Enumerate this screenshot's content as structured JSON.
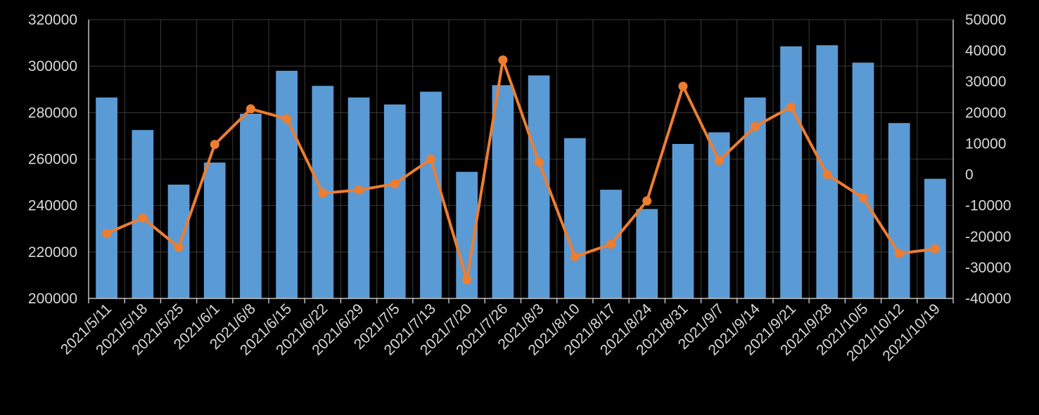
{
  "chart_data": {
    "type": "bar+line",
    "title": "",
    "categories": [
      "2021/5/11",
      "2021/5/18",
      "2021/5/25",
      "2021/6/1",
      "2021/6/8",
      "2021/6/15",
      "2021/6/22",
      "2021/6/29",
      "2021/7/5",
      "2021/7/13",
      "2021/7/20",
      "2021/7/26",
      "2021/8/3",
      "2021/8/10",
      "2021/8/17",
      "2021/8/24",
      "2021/8/31",
      "2021/9/7",
      "2021/9/14",
      "2021/9/21",
      "2021/9/28",
      "2021/10/5",
      "2021/10/12",
      "2021/10/19"
    ],
    "series": [
      {
        "type": "bar",
        "axis": "left",
        "color": "#5b9bd5",
        "values": [
          286500,
          272500,
          249000,
          258500,
          279500,
          298000,
          291500,
          286500,
          283500,
          289000,
          254500,
          291800,
          296000,
          269000,
          246800,
          238500,
          266500,
          271500,
          286500,
          308500,
          309000,
          301500,
          275500,
          251500
        ]
      },
      {
        "type": "line",
        "axis": "right",
        "color": "#ed7d31",
        "values": [
          -19000,
          -14000,
          -23500,
          9700,
          21200,
          18000,
          -6000,
          -5000,
          -3000,
          5000,
          -34000,
          37000,
          4000,
          -26500,
          -22500,
          -8500,
          28500,
          4500,
          15500,
          21800,
          0,
          -7500,
          -25500,
          -24000
        ]
      }
    ],
    "y_left": {
      "min": 200000,
      "max": 320000,
      "step": 20000,
      "ticks": [
        "200000",
        "220000",
        "240000",
        "260000",
        "280000",
        "300000",
        "320000"
      ]
    },
    "y_right": {
      "min": -40000,
      "max": 50000,
      "step": 10000,
      "ticks": [
        "-40000",
        "-30000",
        "-20000",
        "-10000",
        "0",
        "10000",
        "20000",
        "30000",
        "40000",
        "50000"
      ]
    },
    "grid": true,
    "legend": "none",
    "background": "#000000",
    "grid_color": "#3a3a3a",
    "axis_color": "#bfbfbf",
    "text_color": "#d9d9d9"
  }
}
